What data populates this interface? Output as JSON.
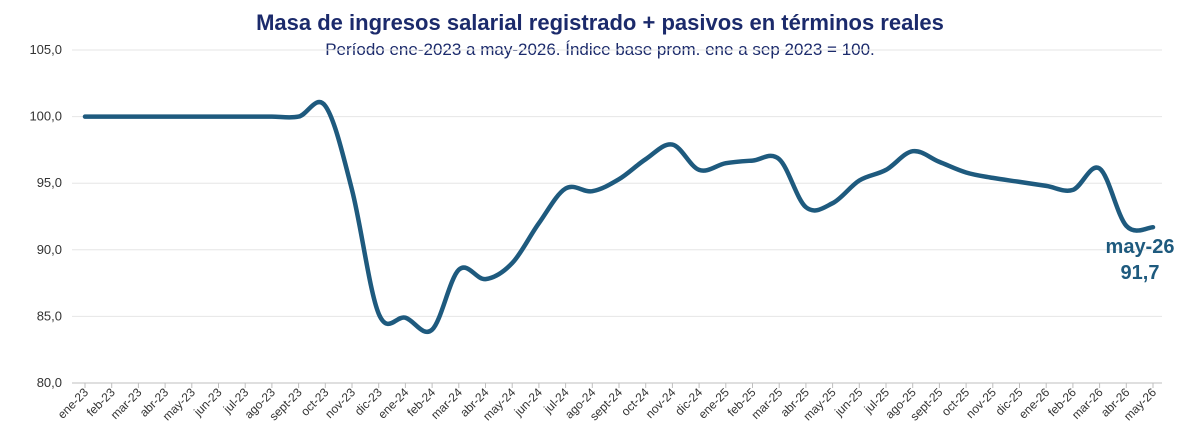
{
  "chart_data": {
    "type": "line",
    "title": "Masa de ingresos salarial registrado + pasivos en términos reales",
    "subtitle": "Período ene-2023 a may-2026. Índice base prom. ene a sep 2023 = 100.",
    "categories": [
      "ene-23",
      "feb-23",
      "mar-23",
      "abr-23",
      "may-23",
      "jun-23",
      "jul-23",
      "ago-23",
      "sept-23",
      "oct-23",
      "nov-23",
      "dic-23",
      "ene-24",
      "feb-24",
      "mar-24",
      "abr-24",
      "may-24",
      "jun-24",
      "jul-24",
      "ago-24",
      "sept-24",
      "oct-24",
      "nov-24",
      "dic-24",
      "ene-25",
      "feb-25",
      "mar-25",
      "abr-25",
      "may-25",
      "jun-25",
      "jul-25",
      "ago-25",
      "sept-25",
      "oct-25",
      "nov-25",
      "dic-25",
      "ene-26",
      "feb-26",
      "mar-26",
      "abr-26",
      "may-26"
    ],
    "series": [
      {
        "values": [
          100.0,
          100.0,
          100.0,
          100.0,
          100.0,
          100.0,
          100.0,
          100.0,
          100.0,
          100.8,
          94.5,
          85.2,
          84.9,
          84.0,
          88.5,
          87.8,
          89.0,
          92.0,
          94.6,
          94.4,
          95.3,
          96.8,
          97.9,
          96.0,
          96.5,
          96.7,
          96.8,
          93.2,
          93.5,
          95.2,
          96.0,
          97.4,
          96.6,
          95.8,
          95.4,
          95.1,
          94.8,
          94.5,
          96.1,
          91.8,
          91.7
        ]
      }
    ],
    "yticks": [
      "80,0",
      "85,0",
      "90,0",
      "95,0",
      "100,0",
      "105,0"
    ],
    "ylim": [
      80,
      105
    ],
    "grid": true,
    "last_label": {
      "period": "may-26",
      "value": "91,7"
    },
    "colors": {
      "line": "#1e5a7e",
      "title": "#1b2a6b",
      "grid": "#e6e6e6"
    }
  }
}
